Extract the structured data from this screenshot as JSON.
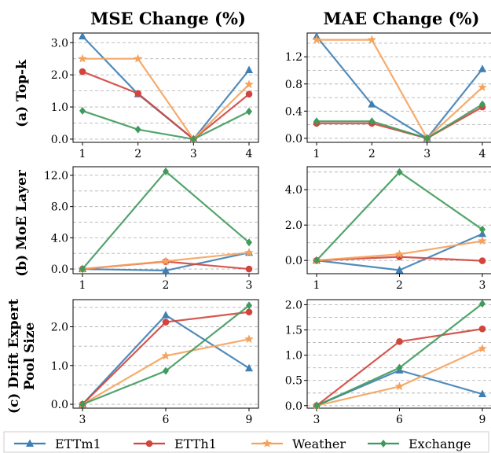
{
  "column_titles": [
    "MSE Change (%)",
    "MAE Change (%)"
  ],
  "row_labels": [
    [
      "(a) Top-k"
    ],
    [
      "(b) MoE Layer"
    ],
    [
      "(c) Drift Expert",
      "Pool Size"
    ]
  ],
  "legend": [
    {
      "name": "ETTm1",
      "color": "#3f7fb4",
      "marker": "triangle"
    },
    {
      "name": "ETTh1",
      "color": "#d1453d",
      "marker": "circle"
    },
    {
      "name": "Weather",
      "color": "#f5a25c",
      "marker": "star"
    },
    {
      "name": "Exchange",
      "color": "#3f9a5c",
      "marker": "diamond"
    }
  ],
  "chart_data": [
    {
      "type": "line",
      "title": "MSE Change (%)",
      "row": "(a) Top-k",
      "x": [
        "1",
        "2",
        "3",
        "4"
      ],
      "yticks": [
        "0.0",
        "1.0",
        "2.0",
        "3.0"
      ],
      "ylim": [
        -0.1,
        3.3
      ],
      "grid": "horizontal dashed",
      "series": [
        {
          "name": "ETTm1",
          "values": [
            3.2,
            1.4,
            0.0,
            2.15
          ]
        },
        {
          "name": "ETTh1",
          "values": [
            2.1,
            1.42,
            0.0,
            1.4
          ]
        },
        {
          "name": "Weather",
          "values": [
            2.5,
            2.5,
            0.0,
            1.7
          ]
        },
        {
          "name": "Exchange",
          "values": [
            0.88,
            0.3,
            0.0,
            0.86
          ]
        }
      ]
    },
    {
      "type": "line",
      "title": "MAE Change (%)",
      "row": "(a) Top-k",
      "x": [
        "1",
        "2",
        "3",
        "4"
      ],
      "yticks": [
        "0.0",
        "0.4",
        "0.8",
        "1.2"
      ],
      "ylim": [
        -0.06,
        1.55
      ],
      "grid": "horizontal dashed",
      "series": [
        {
          "name": "ETTm1",
          "values": [
            1.5,
            0.5,
            0.0,
            1.02
          ]
        },
        {
          "name": "ETTh1",
          "values": [
            0.22,
            0.22,
            0.0,
            0.46
          ]
        },
        {
          "name": "Weather",
          "values": [
            1.45,
            1.45,
            0.0,
            0.75
          ]
        },
        {
          "name": "Exchange",
          "values": [
            0.25,
            0.25,
            0.0,
            0.5
          ]
        }
      ]
    },
    {
      "type": "line",
      "row": "(b) MoE Layer",
      "x": [
        "1",
        "2",
        "3"
      ],
      "yticks": [
        "0.0",
        "4.0",
        "8.0",
        "12.0"
      ],
      "ylim": [
        -0.6,
        13.1
      ],
      "grid": "horizontal dashed",
      "series": [
        {
          "name": "ETTm1",
          "values": [
            0.0,
            -0.2,
            2.1
          ]
        },
        {
          "name": "ETTh1",
          "values": [
            0.0,
            0.95,
            0.0
          ]
        },
        {
          "name": "Weather",
          "values": [
            0.0,
            1.0,
            2.1
          ]
        },
        {
          "name": "Exchange",
          "values": [
            0.0,
            12.5,
            3.4
          ]
        }
      ]
    },
    {
      "type": "line",
      "row": "(b) MoE Layer",
      "x": [
        "1",
        "2",
        "3"
      ],
      "yticks": [
        "0.0",
        "2.0",
        "4.0"
      ],
      "ylim": [
        -0.75,
        5.3
      ],
      "grid": "horizontal dashed",
      "series": [
        {
          "name": "ETTm1",
          "values": [
            0.0,
            -0.55,
            1.5
          ]
        },
        {
          "name": "ETTh1",
          "values": [
            0.0,
            0.2,
            -0.02
          ]
        },
        {
          "name": "Weather",
          "values": [
            0.0,
            0.35,
            1.1
          ]
        },
        {
          "name": "Exchange",
          "values": [
            0.0,
            5.0,
            1.75
          ]
        }
      ]
    },
    {
      "type": "line",
      "row": "(c) Drift Expert Pool Size",
      "x": [
        "3",
        "6",
        "9"
      ],
      "yticks": [
        "0.0",
        "1.0",
        "2.0"
      ],
      "ylim": [
        -0.1,
        2.7
      ],
      "grid": "horizontal dashed",
      "series": [
        {
          "name": "ETTm1",
          "values": [
            0.0,
            2.3,
            0.93
          ]
        },
        {
          "name": "ETTh1",
          "values": [
            0.0,
            2.12,
            2.38
          ]
        },
        {
          "name": "Weather",
          "values": [
            0.0,
            1.25,
            1.68
          ]
        },
        {
          "name": "Exchange",
          "values": [
            0.0,
            0.86,
            2.55
          ]
        }
      ]
    },
    {
      "type": "line",
      "row": "(c) Drift Expert Pool Size",
      "x": [
        "3",
        "6",
        "9"
      ],
      "yticks": [
        "0.0",
        "0.5",
        "1.0",
        "1.5",
        "2.0"
      ],
      "ylim": [
        -0.05,
        2.1
      ],
      "grid": "horizontal dashed",
      "series": [
        {
          "name": "ETTm1",
          "values": [
            0.0,
            0.7,
            0.23
          ]
        },
        {
          "name": "ETTh1",
          "values": [
            0.0,
            1.27,
            1.52
          ]
        },
        {
          "name": "Weather",
          "values": [
            0.0,
            0.38,
            1.13
          ]
        },
        {
          "name": "Exchange",
          "values": [
            0.0,
            0.75,
            2.02
          ]
        }
      ]
    }
  ]
}
